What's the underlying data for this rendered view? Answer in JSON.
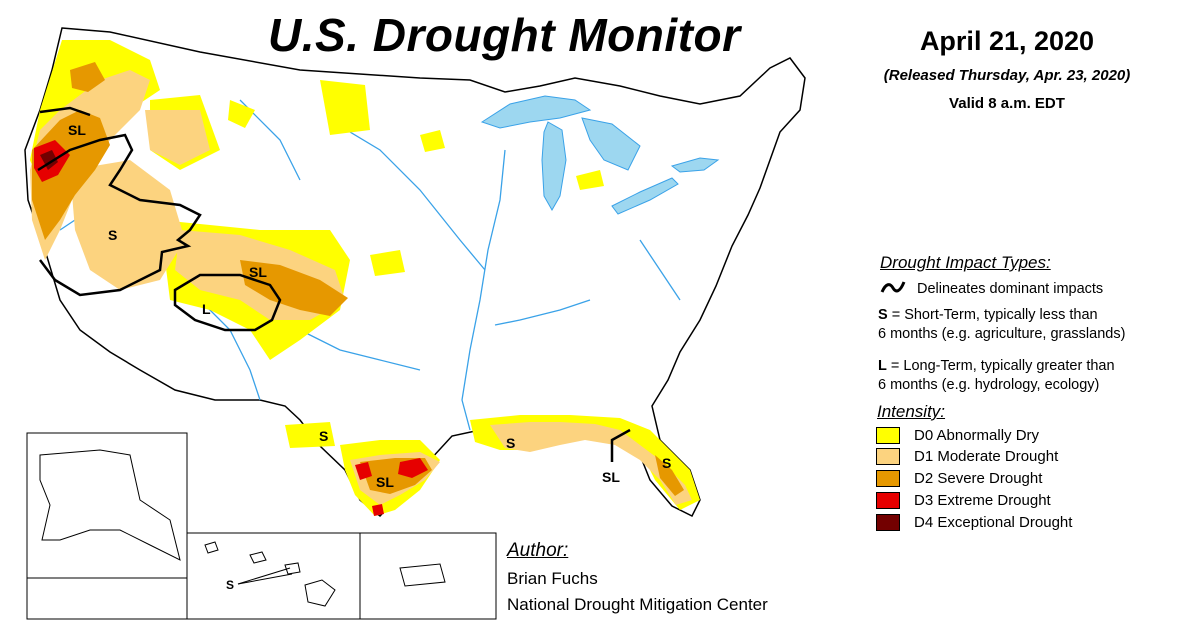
{
  "header": {
    "title": "U.S. Drought Monitor",
    "date": "April 21, 2020",
    "released": "(Released Thursday, Apr. 23, 2020)",
    "valid": "Valid 8 a.m. EDT"
  },
  "impact_types": {
    "heading": "Drought Impact Types:",
    "delineates": "Delineates dominant impacts",
    "short_key": "S",
    "short_line1": " = Short-Term, typically less than",
    "short_line2": "6 months (e.g. agriculture, grasslands)",
    "long_key": "L",
    "long_line1": " = Long-Term, typically greater than",
    "long_line2": "6 months (e.g. hydrology, ecology)"
  },
  "intensity": {
    "heading": "Intensity:",
    "levels": [
      {
        "label": "D0 Abnormally Dry",
        "color": "#FFFF00"
      },
      {
        "label": "D1 Moderate Drought",
        "color": "#FCD37F"
      },
      {
        "label": "D2 Severe Drought",
        "color": "#E69800"
      },
      {
        "label": "D3 Extreme Drought",
        "color": "#E60000"
      },
      {
        "label": "D4 Exceptional Drought",
        "color": "#730000"
      }
    ]
  },
  "author": {
    "heading": "Author:",
    "name": "Brian Fuchs",
    "org": "National Drought Mitigation Center"
  },
  "map_labels": {
    "sl_oregon": "SL",
    "s_nevada": "S",
    "sl_colorado": "SL",
    "l_fourcorners": "L",
    "s_westtexas": "S",
    "sl_southtexas": "SL",
    "s_gulf": "S",
    "sl_panhandle": "SL",
    "s_florida": "S",
    "s_hawaii": "S"
  },
  "colors": {
    "water": "#9DD7F0",
    "river": "#3AA2E8",
    "d0": "#FFFF00",
    "d1": "#FCD37F",
    "d2": "#E69800",
    "d3": "#E60000",
    "d4": "#730000"
  }
}
